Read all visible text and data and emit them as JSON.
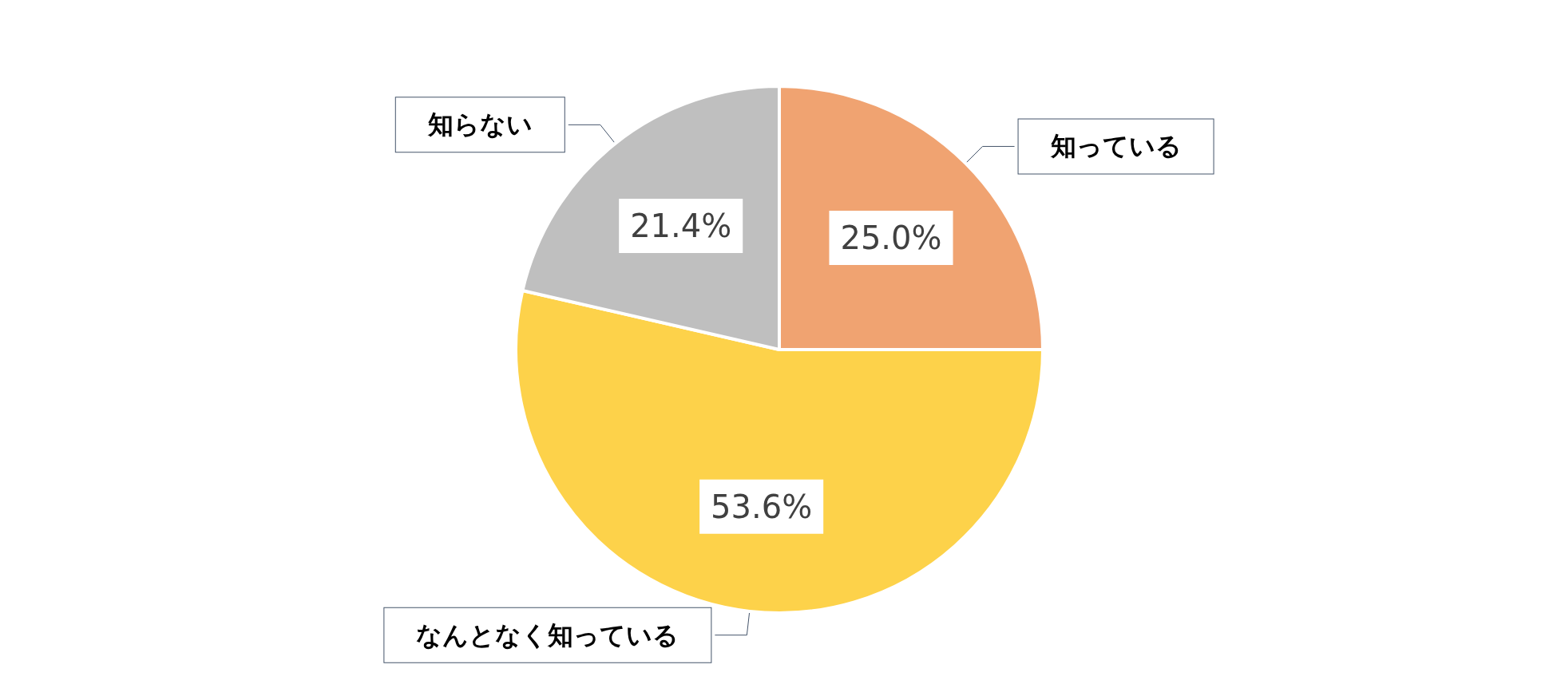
{
  "chart_data": {
    "type": "pie",
    "categories": [
      "知っている",
      "なんとなく知っている",
      "知らない"
    ],
    "values": [
      25.0,
      53.6,
      21.4
    ],
    "value_labels": [
      "25.0%",
      "53.6%",
      "21.4%"
    ],
    "colors": [
      "#f0a371",
      "#fdd24a",
      "#bfbfbf"
    ],
    "legend": false
  }
}
